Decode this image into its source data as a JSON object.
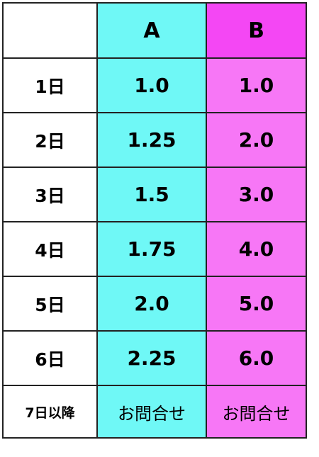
{
  "colors": {
    "column_a_bg": "#6ff8f6",
    "column_b_bg": "#f777f6",
    "column_b_header_bg": "#f447f4",
    "label_bg": "#ffffff",
    "border": "#222222"
  },
  "table": {
    "headers": [
      "",
      "A",
      "B"
    ],
    "rows": [
      {
        "label": "1日",
        "a": "1.0",
        "b": "1.0"
      },
      {
        "label": "2日",
        "a": "1.25",
        "b": "2.0"
      },
      {
        "label": "3日",
        "a": "1.5",
        "b": "3.0"
      },
      {
        "label": "4日",
        "a": "1.75",
        "b": "4.0"
      },
      {
        "label": "5日",
        "a": "2.0",
        "b": "5.0"
      },
      {
        "label": "6日",
        "a": "2.25",
        "b": "6.0"
      },
      {
        "label": "7日以降",
        "a": "お問合せ",
        "b": "お問合せ"
      }
    ]
  }
}
